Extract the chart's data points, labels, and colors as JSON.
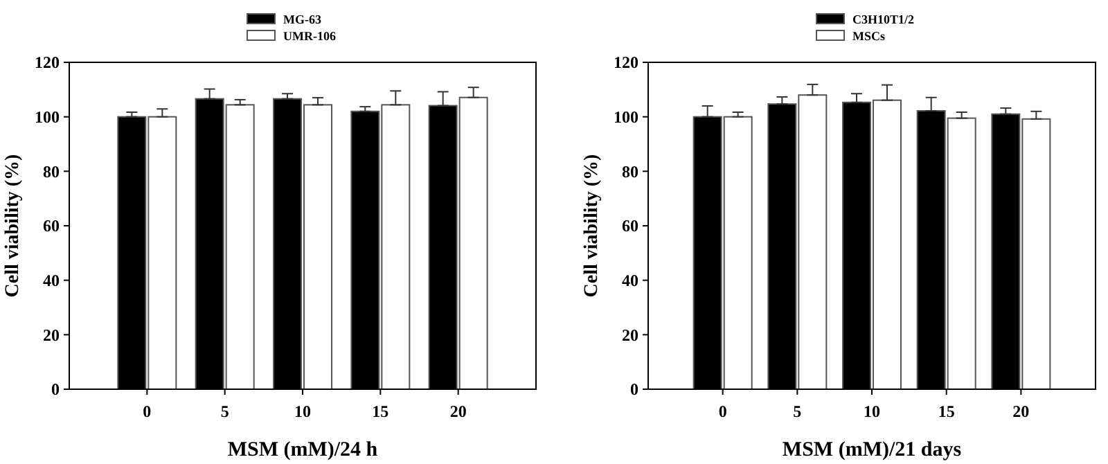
{
  "chart_data": [
    {
      "type": "bar",
      "xlabel": "MSM (mM)/24 h",
      "ylabel": "Cell viability (%)",
      "categories": [
        "0",
        "5",
        "10",
        "15",
        "20"
      ],
      "ylim": [
        0,
        120
      ],
      "yticks": [
        0,
        20,
        40,
        60,
        80,
        100,
        120
      ],
      "legend": "top",
      "grid": false,
      "series": [
        {
          "name": "MG-63",
          "color": "#000000",
          "values": [
            100,
            106.6,
            106.6,
            102,
            104.1
          ],
          "errors": [
            [
              100,
              101.7
            ],
            [
              106.6,
              110.2
            ],
            [
              106.6,
              108.5
            ],
            [
              102,
              103.7
            ],
            [
              104.1,
              109.2
            ]
          ]
        },
        {
          "name": "UMR-106",
          "color": "#ffffff",
          "values": [
            100,
            104.4,
            104.4,
            104.4,
            107.1
          ],
          "errors": [
            [
              100,
              102.9
            ],
            [
              104.4,
              106.3
            ],
            [
              104.4,
              107
            ],
            [
              104.4,
              109.5
            ],
            [
              107.1,
              110.8
            ]
          ]
        }
      ]
    },
    {
      "type": "bar",
      "xlabel": "MSM (mM)/21 days",
      "ylabel": "Cell viability (%)",
      "categories": [
        "0",
        "5",
        "10",
        "15",
        "20"
      ],
      "ylim": [
        0,
        120
      ],
      "yticks": [
        0,
        20,
        40,
        60,
        80,
        100,
        120
      ],
      "legend": "top",
      "grid": false,
      "series": [
        {
          "name": "C3H10T1/2",
          "color": "#000000",
          "values": [
            100,
            104.7,
            105.3,
            102.2,
            101
          ],
          "errors": [
            [
              100,
              104
            ],
            [
              104.7,
              107.3
            ],
            [
              105.3,
              108.5
            ],
            [
              102.2,
              107.1
            ],
            [
              101,
              103.2
            ]
          ]
        },
        {
          "name": "MSCs",
          "color": "#ffffff",
          "values": [
            100,
            108,
            106.1,
            99.5,
            99.2
          ],
          "errors": [
            [
              100,
              101.7
            ],
            [
              108,
              111.9
            ],
            [
              106.1,
              111.7
            ],
            [
              99.5,
              101.7
            ],
            [
              99.2,
              102
            ]
          ]
        }
      ]
    }
  ]
}
